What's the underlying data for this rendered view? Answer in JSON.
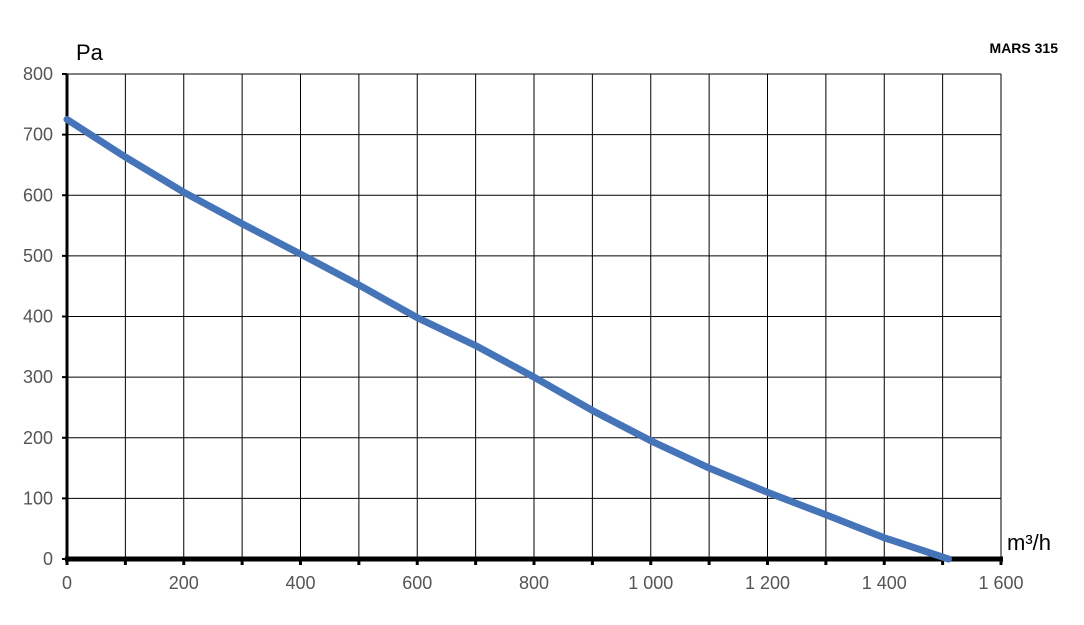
{
  "chart_data": {
    "type": "line",
    "title": "MARS 315",
    "xlabel": "m³/h",
    "ylabel": "Pa",
    "xlim": [
      0,
      1600
    ],
    "ylim": [
      0,
      800
    ],
    "grid": true,
    "x_grid_step": 100,
    "x_ticks": [
      0,
      200,
      400,
      600,
      800,
      1000,
      1200,
      1400,
      1600
    ],
    "x_tick_labels": [
      "0",
      "200",
      "400",
      "600",
      "800",
      "1 000",
      "1 200",
      "1 400",
      "1 600"
    ],
    "y_ticks": [
      0,
      100,
      200,
      300,
      400,
      500,
      600,
      700,
      800
    ],
    "y_tick_labels": [
      "0",
      "100",
      "200",
      "300",
      "400",
      "500",
      "600",
      "700",
      "800"
    ],
    "series": [
      {
        "color": "#4674b9",
        "x": [
          0,
          100,
          200,
          300,
          400,
          500,
          600,
          700,
          800,
          900,
          1000,
          1100,
          1200,
          1300,
          1400,
          1510
        ],
        "y": [
          725,
          663,
          605,
          553,
          503,
          452,
          398,
          352,
          300,
          245,
          195,
          150,
          110,
          73,
          35,
          0
        ]
      }
    ]
  }
}
